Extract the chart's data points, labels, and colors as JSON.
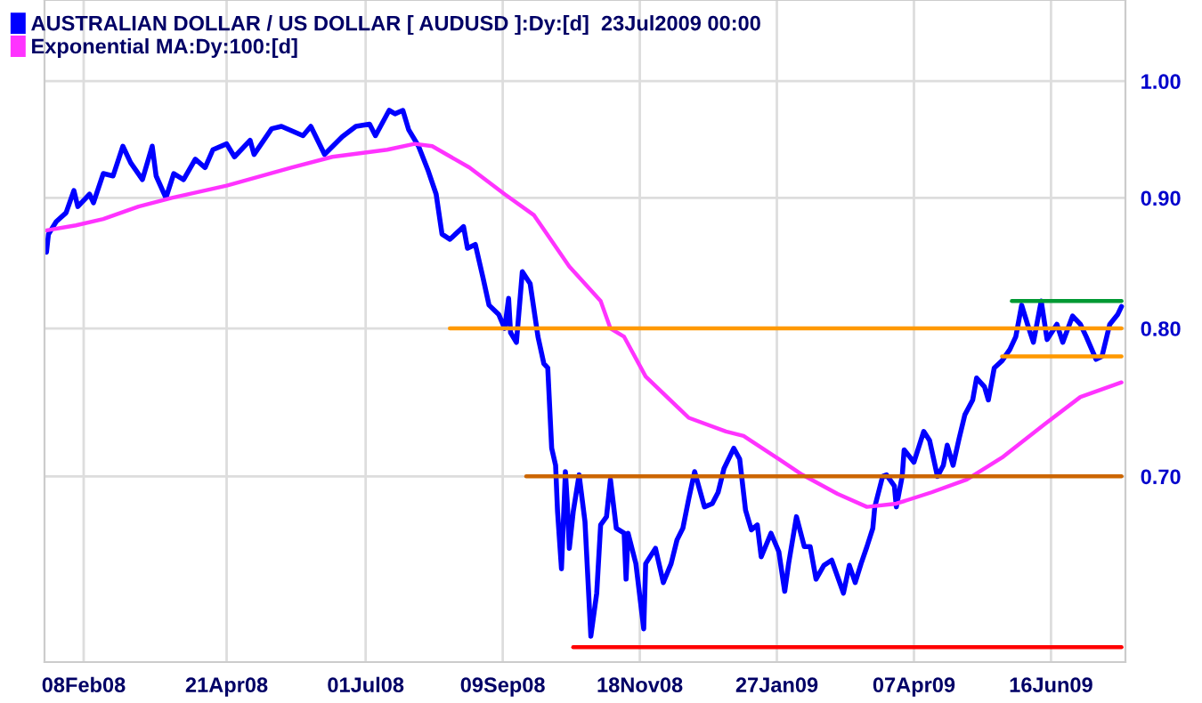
{
  "chart_data": {
    "type": "line",
    "log": "y",
    "grid": true,
    "legend": "top left",
    "line_style": "solid",
    "marker": "none",
    "xlim": [
      "2008-01-19",
      "2009-07-24"
    ],
    "xticks": [
      {
        "value": "2008-02-08",
        "label": "08Feb08"
      },
      {
        "value": "2008-04-21",
        "label": "21Apr08"
      },
      {
        "value": "2008-07-01",
        "label": "01Jul08"
      },
      {
        "value": "2008-09-09",
        "label": "09Sep08"
      },
      {
        "value": "2008-11-18",
        "label": "18Nov08"
      },
      {
        "value": "2009-01-27",
        "label": "27Jan09"
      },
      {
        "value": "2009-04-07",
        "label": "07Apr09"
      },
      {
        "value": "2009-06-16",
        "label": "16Jun09"
      }
    ],
    "ylim": [
      0.592,
      1.076
    ],
    "yticks": [
      {
        "value": 0.7,
        "label": "0.70"
      },
      {
        "value": 0.8,
        "label": "0.80"
      },
      {
        "value": 0.9,
        "label": "0.90"
      },
      {
        "value": 1.0,
        "label": "1.00"
      }
    ],
    "series": [
      {
        "name": "AUSTRALIAN DOLLAR / US DOLLAR [ AUDUSD ]:Dy:[d]  23Jul2009 00:00",
        "color": "#0000ff",
        "x": [
          "2008-01-20",
          "2008-01-21",
          "2008-01-25",
          "2008-01-30",
          "2008-02-03",
          "2008-02-05",
          "2008-02-11",
          "2008-02-13",
          "2008-02-18",
          "2008-02-23",
          "2008-02-28",
          "2008-03-03",
          "2008-03-09",
          "2008-03-14",
          "2008-03-16",
          "2008-03-21",
          "2008-03-25",
          "2008-03-30",
          "2008-04-05",
          "2008-04-10",
          "2008-04-14",
          "2008-04-21",
          "2008-04-25",
          "2008-05-03",
          "2008-05-05",
          "2008-05-14",
          "2008-05-19",
          "2008-05-30",
          "2008-06-03",
          "2008-06-10",
          "2008-06-19",
          "2008-06-26",
          "2008-07-03",
          "2008-07-06",
          "2008-07-13",
          "2008-07-16",
          "2008-07-20",
          "2008-07-23",
          "2008-07-28",
          "2008-08-02",
          "2008-08-06",
          "2008-08-09",
          "2008-08-13",
          "2008-08-20",
          "2008-08-22",
          "2008-08-26",
          "2008-08-30",
          "2008-09-02",
          "2008-09-07",
          "2008-09-10",
          "2008-09-12",
          "2008-09-13",
          "2008-09-16",
          "2008-09-19",
          "2008-09-23",
          "2008-09-27",
          "2008-09-30",
          "2008-10-02",
          "2008-10-04",
          "2008-10-06",
          "2008-10-07",
          "2008-10-09",
          "2008-10-11",
          "2008-10-12",
          "2008-10-13",
          "2008-10-15",
          "2008-10-18",
          "2008-10-21",
          "2008-10-24",
          "2008-10-27",
          "2008-10-29",
          "2008-11-01",
          "2008-11-03",
          "2008-11-06",
          "2008-11-10",
          "2008-11-11",
          "2008-11-12",
          "2008-11-16",
          "2008-11-20",
          "2008-11-21",
          "2008-11-26",
          "2008-11-30",
          "2008-12-04",
          "2008-12-07",
          "2008-12-10",
          "2008-12-13",
          "2008-12-16",
          "2008-12-21",
          "2008-12-25",
          "2008-12-28",
          "2008-12-31",
          "2009-01-05",
          "2009-01-08",
          "2009-01-11",
          "2009-01-14",
          "2009-01-17",
          "2009-01-19",
          "2009-01-24",
          "2009-01-28",
          "2009-01-31",
          "2009-02-02",
          "2009-02-06",
          "2009-02-10",
          "2009-02-13",
          "2009-02-16",
          "2009-02-20",
          "2009-02-24",
          "2009-03-02",
          "2009-03-05",
          "2009-03-08",
          "2009-03-11",
          "2009-03-14",
          "2009-03-17",
          "2009-03-18",
          "2009-03-22",
          "2009-03-24",
          "2009-03-28",
          "2009-03-29",
          "2009-04-01",
          "2009-04-02",
          "2009-04-07",
          "2009-04-12",
          "2009-04-15",
          "2009-04-19",
          "2009-04-22",
          "2009-04-24",
          "2009-04-27",
          "2009-04-30",
          "2009-05-03",
          "2009-05-07",
          "2009-05-09",
          "2009-05-13",
          "2009-05-15",
          "2009-05-18",
          "2009-05-22",
          "2009-05-26",
          "2009-05-29",
          "2009-06-01",
          "2009-06-04",
          "2009-06-07",
          "2009-06-11",
          "2009-06-14",
          "2009-06-19",
          "2009-06-22",
          "2009-06-27",
          "2009-07-01",
          "2009-07-04",
          "2009-07-09",
          "2009-07-12",
          "2009-07-16",
          "2009-07-20",
          "2009-07-22"
        ],
        "values": [
          0.857,
          0.871,
          0.881,
          0.888,
          0.906,
          0.893,
          0.903,
          0.896,
          0.92,
          0.918,
          0.943,
          0.929,
          0.915,
          0.943,
          0.918,
          0.9,
          0.92,
          0.915,
          0.932,
          0.925,
          0.94,
          0.945,
          0.934,
          0.948,
          0.936,
          0.958,
          0.96,
          0.952,
          0.96,
          0.936,
          0.951,
          0.96,
          0.962,
          0.952,
          0.974,
          0.971,
          0.974,
          0.957,
          0.943,
          0.922,
          0.903,
          0.871,
          0.867,
          0.877,
          0.86,
          0.863,
          0.837,
          0.817,
          0.81,
          0.8,
          0.822,
          0.797,
          0.79,
          0.842,
          0.833,
          0.794,
          0.775,
          0.772,
          0.718,
          0.707,
          0.678,
          0.644,
          0.703,
          0.683,
          0.656,
          0.678,
          0.701,
          0.672,
          0.606,
          0.63,
          0.67,
          0.675,
          0.698,
          0.668,
          0.665,
          0.638,
          0.665,
          0.647,
          0.61,
          0.647,
          0.656,
          0.636,
          0.647,
          0.661,
          0.668,
          0.686,
          0.703,
          0.681,
          0.683,
          0.69,
          0.705,
          0.718,
          0.711,
          0.679,
          0.667,
          0.67,
          0.651,
          0.665,
          0.654,
          0.631,
          0.647,
          0.675,
          0.657,
          0.657,
          0.638,
          0.646,
          0.649,
          0.63,
          0.646,
          0.636,
          0.647,
          0.657,
          0.668,
          0.681,
          0.7,
          0.701,
          0.694,
          0.681,
          0.7,
          0.717,
          0.709,
          0.729,
          0.723,
          0.7,
          0.707,
          0.72,
          0.707,
          0.724,
          0.74,
          0.75,
          0.765,
          0.759,
          0.75,
          0.772,
          0.777,
          0.785,
          0.794,
          0.817,
          0.803,
          0.79,
          0.82,
          0.792,
          0.803,
          0.79,
          0.809,
          0.803,
          0.794,
          0.778,
          0.78,
          0.803,
          0.81,
          0.816
        ]
      },
      {
        "name": "Exponential MA:Dy:100:[d]",
        "color": "#ff33ff",
        "x": [
          "2008-01-20",
          "2008-02-04",
          "2008-02-18",
          "2008-03-07",
          "2008-03-24",
          "2008-04-21",
          "2008-05-24",
          "2008-06-14",
          "2008-07-12",
          "2008-07-26",
          "2008-08-04",
          "2008-08-23",
          "2008-09-10",
          "2008-09-25",
          "2008-10-13",
          "2008-10-29",
          "2008-11-03",
          "2008-11-10",
          "2008-11-21",
          "2008-12-13",
          "2009-01-01",
          "2009-01-10",
          "2009-01-28",
          "2009-02-09",
          "2009-02-27",
          "2009-03-14",
          "2009-03-29",
          "2009-04-16",
          "2009-05-04",
          "2009-05-22",
          "2009-06-13",
          "2009-07-01",
          "2009-07-22"
        ],
        "values": [
          0.874,
          0.878,
          0.883,
          0.893,
          0.9,
          0.91,
          0.925,
          0.934,
          0.94,
          0.945,
          0.943,
          0.925,
          0.903,
          0.886,
          0.846,
          0.82,
          0.8,
          0.794,
          0.766,
          0.738,
          0.729,
          0.726,
          0.711,
          0.701,
          0.689,
          0.681,
          0.683,
          0.69,
          0.698,
          0.712,
          0.734,
          0.752,
          0.762
        ]
      },
      {
        "type": "line",
        "color": "#ff9900",
        "x": [
          "2008-08-13",
          "2009-07-22"
        ],
        "values": [
          0.8,
          0.8
        ]
      },
      {
        "type": "line",
        "color": "#ff9900",
        "x": [
          "2009-05-22",
          "2009-07-22"
        ],
        "values": [
          0.78,
          0.78
        ]
      },
      {
        "type": "line",
        "color": "#009933",
        "x": [
          "2009-05-27",
          "2009-07-22"
        ],
        "values": [
          0.82,
          0.82
        ]
      },
      {
        "type": "line",
        "color": "#cc6600",
        "x": [
          "2008-09-21",
          "2009-07-22"
        ],
        "values": [
          0.7,
          0.7
        ]
      },
      {
        "type": "line",
        "color": "#ff0000",
        "x": [
          "2008-10-15",
          "2009-07-22"
        ],
        "values": [
          0.6,
          0.6
        ]
      }
    ]
  }
}
